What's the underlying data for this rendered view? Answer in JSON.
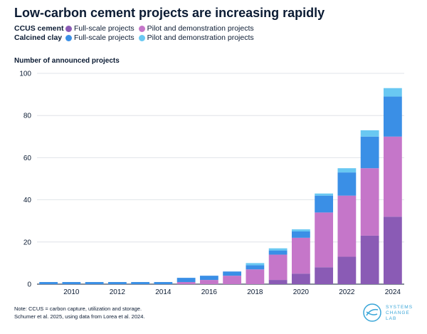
{
  "title": "Low-carbon cement projects are increasing rapidly",
  "legend": {
    "groups": [
      {
        "name": "CCUS cement",
        "items": [
          {
            "label": "Full-scale projects",
            "color": "#8a5bb5"
          },
          {
            "label": "Pilot and demonstration projects",
            "color": "#c576c9"
          }
        ]
      },
      {
        "name": "Calcined clay",
        "items": [
          {
            "label": "Full-scale projects",
            "color": "#3a8fe6"
          },
          {
            "label": "Pilot and demonstration projects",
            "color": "#69c8f2"
          }
        ]
      }
    ]
  },
  "chart_data": {
    "type": "bar",
    "stacked": true,
    "ylabel": "Number of announced projects",
    "ylim": [
      0,
      100
    ],
    "yticks": [
      0,
      20,
      40,
      60,
      80,
      100
    ],
    "grid": true,
    "categories": [
      "2009",
      "2010",
      "2011",
      "2012",
      "2013",
      "2014",
      "2015",
      "2016",
      "2017",
      "2018",
      "2019",
      "2020",
      "2021",
      "2022",
      "2023",
      "2024"
    ],
    "xtick_labels": [
      "2010",
      "2012",
      "2014",
      "2016",
      "2018",
      "2020",
      "2022",
      "2024"
    ],
    "series": [
      {
        "name": "CCUS cement – Full-scale projects",
        "color": "#8a5bb5",
        "values": [
          0,
          0,
          0,
          0,
          0,
          0,
          0,
          0,
          0,
          0,
          2,
          5,
          8,
          13,
          23,
          32
        ]
      },
      {
        "name": "CCUS cement – Pilot and demonstration projects",
        "color": "#c576c9",
        "values": [
          0,
          0,
          0,
          0,
          0,
          0,
          1,
          2,
          4,
          7,
          12,
          17,
          26,
          29,
          32,
          38
        ]
      },
      {
        "name": "Calcined clay – Full-scale projects",
        "color": "#3a8fe6",
        "values": [
          1,
          1,
          1,
          1,
          1,
          1,
          2,
          2,
          2,
          2,
          2,
          3,
          8,
          11,
          15,
          19
        ]
      },
      {
        "name": "Calcined clay – Pilot and demonstration projects",
        "color": "#69c8f2",
        "values": [
          0,
          0,
          0,
          0,
          0,
          0,
          0,
          0,
          0,
          1,
          1,
          1,
          1,
          2,
          3,
          4
        ]
      }
    ]
  },
  "note_lines": [
    "Note: CCUS = carbon capture, utilization and storage.",
    "Schumer et al. 2025, using data from Lorea et al. 2024."
  ],
  "logo_text": [
    "SYSTEMS",
    "CHANGE",
    "LAB"
  ]
}
